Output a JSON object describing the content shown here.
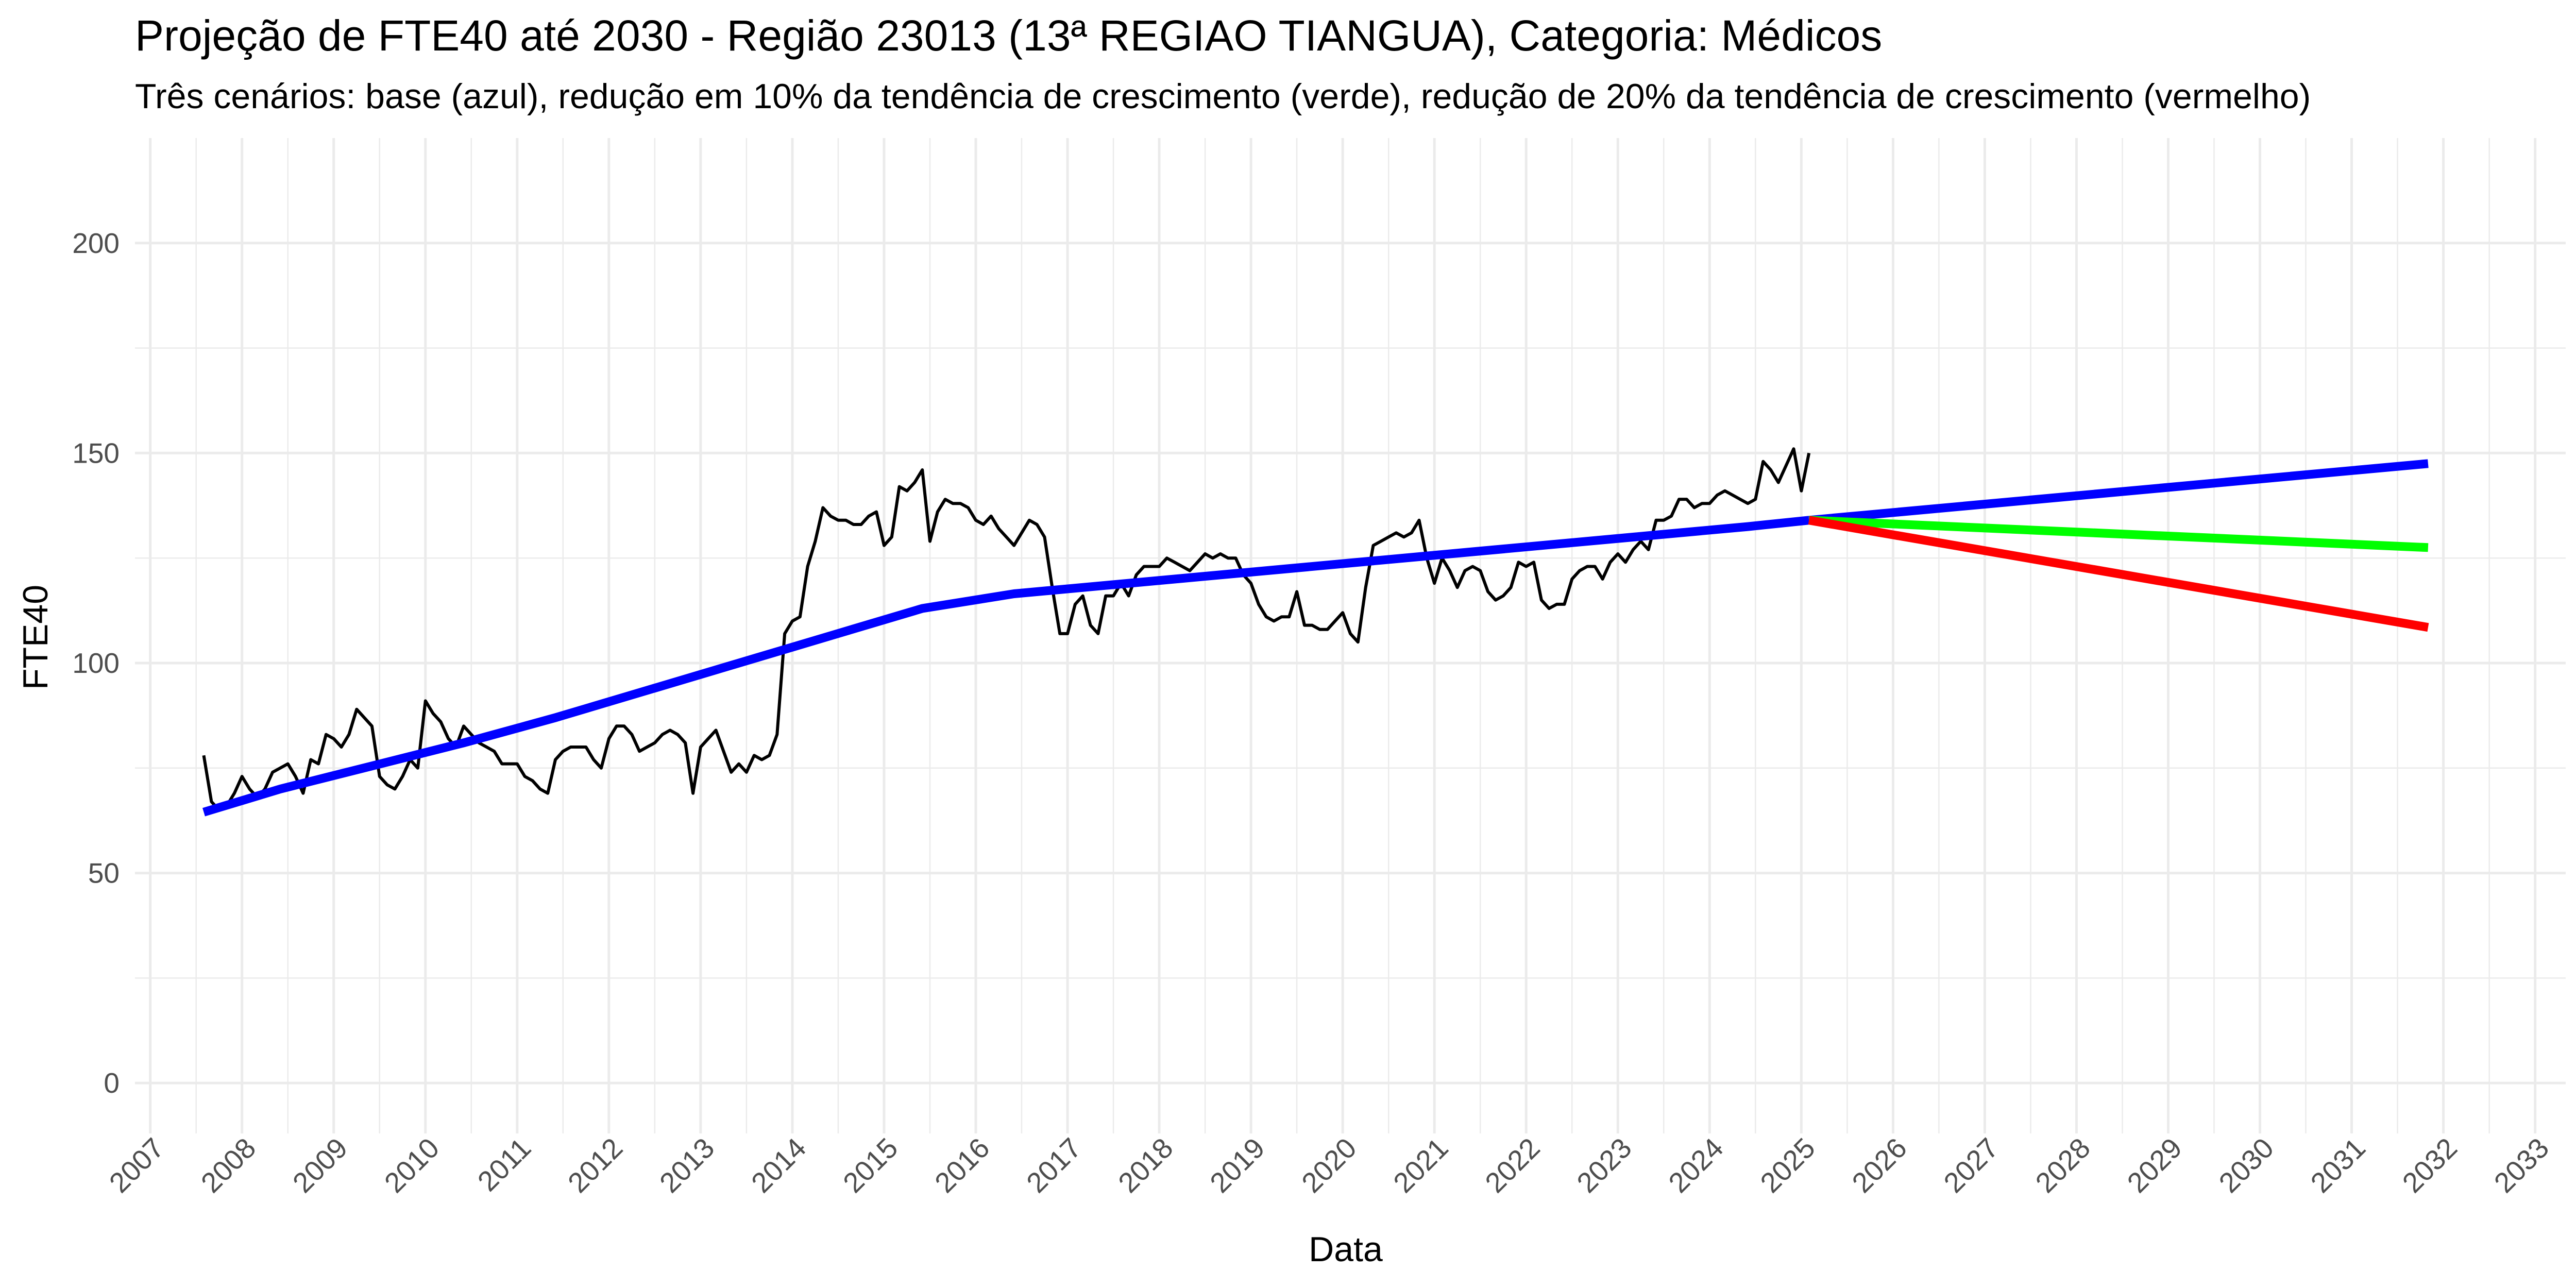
{
  "chart_data": {
    "type": "line",
    "title": "Projeção de FTE40 até 2030 - Região 23013 (13ª REGIAO TIANGUA), Categoria: Médicos",
    "subtitle": "Três cenários: base (azul), redução em 10% da tendência de crescimento (verde), redução de 20% da tendência de crescimento (vermelho)",
    "xlabel": "Data",
    "ylabel": "FTE40",
    "x_ticks": [
      "2007",
      "2008",
      "2009",
      "2010",
      "2011",
      "2012",
      "2013",
      "2014",
      "2015",
      "2016",
      "2017",
      "2018",
      "2019",
      "2020",
      "2021",
      "2022",
      "2023",
      "2024",
      "2025",
      "2026",
      "2027",
      "2028",
      "2029",
      "2030",
      "2031",
      "2032",
      "2033"
    ],
    "y_ticks": [
      0,
      50,
      100,
      150,
      200
    ],
    "xlim": [
      "2006-11",
      "2033-05"
    ],
    "ylim": [
      -12,
      225
    ],
    "grid": true,
    "legend": "none",
    "series": [
      {
        "color": "#000000",
        "x": [
          "2007-08",
          "2007-09",
          "2007-10",
          "2007-11",
          "2007-12",
          "2008-01",
          "2008-02",
          "2008-03",
          "2008-04",
          "2008-05",
          "2008-06",
          "2008-07",
          "2008-08",
          "2008-09",
          "2008-10",
          "2008-11",
          "2008-12",
          "2009-01",
          "2009-02",
          "2009-03",
          "2009-04",
          "2009-05",
          "2009-06",
          "2009-07",
          "2009-08",
          "2009-09",
          "2009-10",
          "2009-11",
          "2009-12",
          "2010-01",
          "2010-02",
          "2010-03",
          "2010-04",
          "2010-05",
          "2010-06",
          "2010-07",
          "2010-08",
          "2010-09",
          "2010-10",
          "2010-11",
          "2010-12",
          "2011-01",
          "2011-02",
          "2011-03",
          "2011-04",
          "2011-05",
          "2011-06",
          "2011-07",
          "2011-08",
          "2011-09",
          "2011-10",
          "2011-11",
          "2011-12",
          "2012-01",
          "2012-02",
          "2012-03",
          "2012-04",
          "2012-05",
          "2012-06",
          "2012-07",
          "2012-08",
          "2012-09",
          "2012-10",
          "2012-11",
          "2012-12",
          "2013-01",
          "2013-02",
          "2013-03",
          "2013-04",
          "2013-05",
          "2013-06",
          "2013-07",
          "2013-08",
          "2013-09",
          "2013-10",
          "2013-11",
          "2013-12",
          "2014-01",
          "2014-02",
          "2014-03",
          "2014-04",
          "2014-05",
          "2014-06",
          "2014-07",
          "2014-08",
          "2014-09",
          "2014-10",
          "2014-11",
          "2014-12",
          "2015-01",
          "2015-02",
          "2015-03",
          "2015-04",
          "2015-05",
          "2015-06",
          "2015-07",
          "2015-08",
          "2015-09",
          "2015-10",
          "2015-11",
          "2015-12",
          "2016-01",
          "2016-02",
          "2016-03",
          "2016-04",
          "2016-05",
          "2016-06",
          "2016-07",
          "2016-08",
          "2016-09",
          "2016-10",
          "2016-11",
          "2016-12",
          "2017-01",
          "2017-02",
          "2017-03",
          "2017-04",
          "2017-05",
          "2017-06",
          "2017-07",
          "2017-08",
          "2017-09",
          "2017-10",
          "2017-11",
          "2017-12",
          "2018-01",
          "2018-02",
          "2018-03",
          "2018-04",
          "2018-05",
          "2018-06",
          "2018-07",
          "2018-08",
          "2018-09",
          "2018-10",
          "2018-11",
          "2018-12",
          "2019-01",
          "2019-02",
          "2019-03",
          "2019-04",
          "2019-05",
          "2019-06",
          "2019-07",
          "2019-08",
          "2019-09",
          "2019-10",
          "2019-11",
          "2019-12",
          "2020-01",
          "2020-02",
          "2020-03",
          "2020-04",
          "2020-05",
          "2020-06",
          "2020-07",
          "2020-08",
          "2020-09",
          "2020-10",
          "2020-11",
          "2020-12",
          "2021-01",
          "2021-02",
          "2021-03",
          "2021-04",
          "2021-05",
          "2021-06",
          "2021-07",
          "2021-08",
          "2021-09",
          "2021-10",
          "2021-11",
          "2021-12",
          "2022-01",
          "2022-02",
          "2022-03",
          "2022-04",
          "2022-05",
          "2022-06",
          "2022-07",
          "2022-08",
          "2022-09",
          "2022-10",
          "2022-11",
          "2022-12",
          "2023-01",
          "2023-02",
          "2023-03",
          "2023-04",
          "2023-05",
          "2023-06",
          "2023-07",
          "2023-08",
          "2023-09",
          "2023-10",
          "2023-11",
          "2023-12",
          "2024-01",
          "2024-02",
          "2024-03",
          "2024-04",
          "2024-05",
          "2024-06",
          "2024-07",
          "2024-08",
          "2024-09",
          "2024-10",
          "2024-11",
          "2024-12",
          "2025-01",
          "2025-02"
        ],
        "y": [
          78,
          67,
          65,
          66,
          69,
          73,
          70,
          68,
          70,
          74,
          75,
          76,
          73,
          69,
          77,
          76,
          83,
          82,
          80,
          83,
          89,
          87,
          85,
          73,
          71,
          70,
          73,
          77,
          75,
          91,
          88,
          86,
          82,
          80,
          85,
          83,
          81,
          80,
          79,
          76,
          76,
          76,
          73,
          72,
          70,
          69,
          77,
          79,
          80,
          80,
          80,
          77,
          75,
          82,
          85,
          85,
          83,
          79,
          80,
          81,
          83,
          84,
          83,
          81,
          69,
          80,
          82,
          84,
          79,
          74,
          76,
          74,
          78,
          77,
          78,
          83,
          107,
          110,
          111,
          123,
          129,
          137,
          135,
          134,
          134,
          133,
          133,
          135,
          136,
          128,
          130,
          142,
          141,
          143,
          146,
          129,
          136,
          139,
          138,
          138,
          137,
          134,
          133,
          135,
          132,
          130,
          128,
          131,
          134,
          133,
          130,
          118,
          107,
          107,
          114,
          116,
          109,
          107,
          116,
          116,
          119,
          116,
          121,
          123,
          123,
          123,
          125,
          124,
          123,
          122,
          124,
          126,
          125,
          126,
          125,
          125,
          121,
          119,
          114,
          111,
          110,
          111,
          111,
          117,
          109,
          109,
          108,
          108,
          110,
          112,
          107,
          105,
          118,
          128,
          129,
          130,
          131,
          130,
          131,
          134,
          125,
          119,
          125,
          122,
          118,
          122,
          123,
          122,
          117,
          115,
          116,
          118,
          124,
          123,
          124,
          115,
          113,
          114,
          114,
          120,
          122,
          123,
          123,
          120,
          124,
          126,
          124,
          127,
          129,
          127,
          134,
          134,
          135,
          139,
          139,
          137,
          138,
          138,
          140,
          141,
          140,
          139,
          138,
          139,
          148,
          146,
          143,
          147,
          151,
          141,
          150
        ]
      },
      {
        "color": "#0000ff",
        "x": [
          "2007-08",
          "2008-06",
          "2009-06",
          "2010-06",
          "2011-06",
          "2012-06",
          "2013-06",
          "2014-06",
          "2015-06",
          "2016-06",
          "2017-06",
          "2018-06",
          "2019-06",
          "2020-06",
          "2021-06",
          "2022-06",
          "2023-06",
          "2024-06",
          "2025-02"
        ],
        "y": [
          64.5,
          70,
          75.5,
          81,
          87,
          93.5,
          100,
          106.5,
          113,
          116.5,
          118.5,
          120.5,
          122.5,
          124.5,
          126.5,
          128.5,
          130.5,
          132.5,
          134
        ]
      },
      {
        "color": "#0000ff",
        "x": [
          "2025-02",
          "2031-11"
        ],
        "y": [
          134,
          147.5
        ]
      },
      {
        "color": "#00ff00",
        "x": [
          "2025-02",
          "2031-11"
        ],
        "y": [
          134,
          127.5
        ]
      },
      {
        "color": "#ff0000",
        "x": [
          "2025-02",
          "2031-11"
        ],
        "y": [
          134,
          108.5
        ]
      }
    ]
  }
}
